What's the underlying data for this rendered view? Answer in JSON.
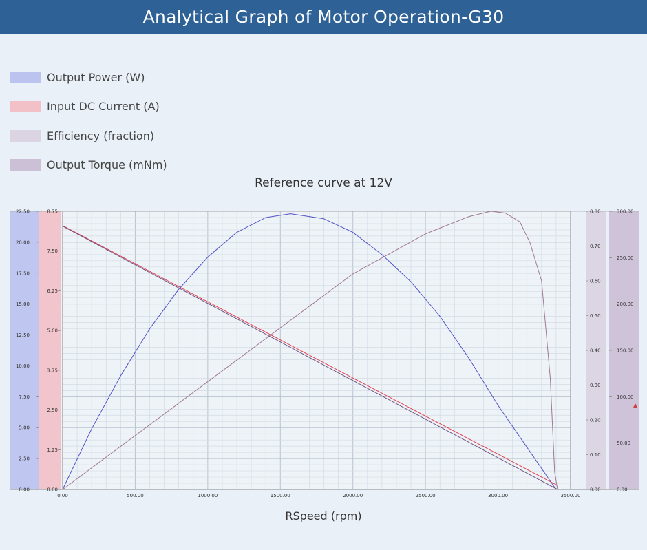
{
  "header": {
    "title": "Analytical Graph of Motor Operation-G30"
  },
  "legend": [
    {
      "label": "Output Power (W)",
      "color": "#bdc3ef"
    },
    {
      "label": "Input DC Current (A)",
      "color": "#f2c1c8"
    },
    {
      "label": "Efficiency (fraction)",
      "color": "#dbd5e3"
    },
    {
      "label": "Output Torque (mNm)",
      "color": "#cbc0d6"
    }
  ],
  "chart_data": {
    "type": "line",
    "title": "Reference curve at 12V",
    "xlabel": "RSpeed (rpm)",
    "xlim": [
      0,
      3500
    ],
    "x_ticks": [
      "0.00",
      "500.00",
      "1000.00",
      "1500.00",
      "2000.00",
      "2500.00",
      "3000.00",
      "3500.00"
    ],
    "axes": [
      {
        "id": "power",
        "side": "left",
        "band_color": "#bfc6f0",
        "ylim": [
          0,
          22.5
        ],
        "ticks": [
          "0.00",
          "2.50",
          "5.00",
          "7.50",
          "10.00",
          "12.50",
          "15.00",
          "17.50",
          "20.00",
          "22.50"
        ]
      },
      {
        "id": "current",
        "side": "left",
        "band_color": "#f2c4cb",
        "ylim": [
          0,
          8.75
        ],
        "ticks": [
          "0.00",
          "1.25",
          "2.50",
          "3.75",
          "5.00",
          "6.25",
          "7.50",
          "8.75"
        ]
      },
      {
        "id": "efficiency",
        "side": "right",
        "band_color": "#dcd6e4",
        "ylim": [
          0,
          0.8
        ],
        "ticks": [
          "0.00",
          "0.10",
          "0.20",
          "0.30",
          "0.40",
          "0.50",
          "0.60",
          "0.70",
          "0.80"
        ]
      },
      {
        "id": "torque",
        "side": "right",
        "band_color": "#cec3d8",
        "ylim": [
          0,
          300
        ],
        "ticks": [
          "0.00",
          "50.00",
          "100.00",
          "150.00",
          "200.00",
          "250.00",
          "300.00"
        ]
      }
    ],
    "series": [
      {
        "name": "Output Power (W)",
        "axis": "power",
        "color": "#5252c4",
        "x": [
          0,
          200,
          400,
          600,
          800,
          1000,
          1200,
          1400,
          1570,
          1800,
          2000,
          2200,
          2400,
          2600,
          2800,
          3000,
          3200,
          3400
        ],
        "y": [
          0,
          4.9,
          9.2,
          13.0,
          16.2,
          18.8,
          20.8,
          22.0,
          22.3,
          21.9,
          20.8,
          19.0,
          16.8,
          14.0,
          10.6,
          6.8,
          3.4,
          0
        ]
      },
      {
        "name": "Input DC Current (A)",
        "axis": "current",
        "color": "#e0404f",
        "x": [
          0,
          3400
        ],
        "y": [
          8.3,
          0.15
        ]
      },
      {
        "name": "Efficiency (fraction)",
        "axis": "efficiency",
        "color": "#a07890",
        "x": [
          0,
          500,
          1000,
          1500,
          2000,
          2500,
          2800,
          2950,
          3050,
          3150,
          3220,
          3300,
          3360,
          3390,
          3410
        ],
        "y": [
          0,
          0.155,
          0.31,
          0.465,
          0.62,
          0.735,
          0.785,
          0.8,
          0.795,
          0.77,
          0.71,
          0.6,
          0.32,
          0.05,
          0
        ]
      },
      {
        "name": "Output Torque (mNm)",
        "axis": "torque",
        "color": "#6e5580",
        "x": [
          0,
          3410
        ],
        "y": [
          284,
          0
        ]
      }
    ],
    "grid": true
  }
}
